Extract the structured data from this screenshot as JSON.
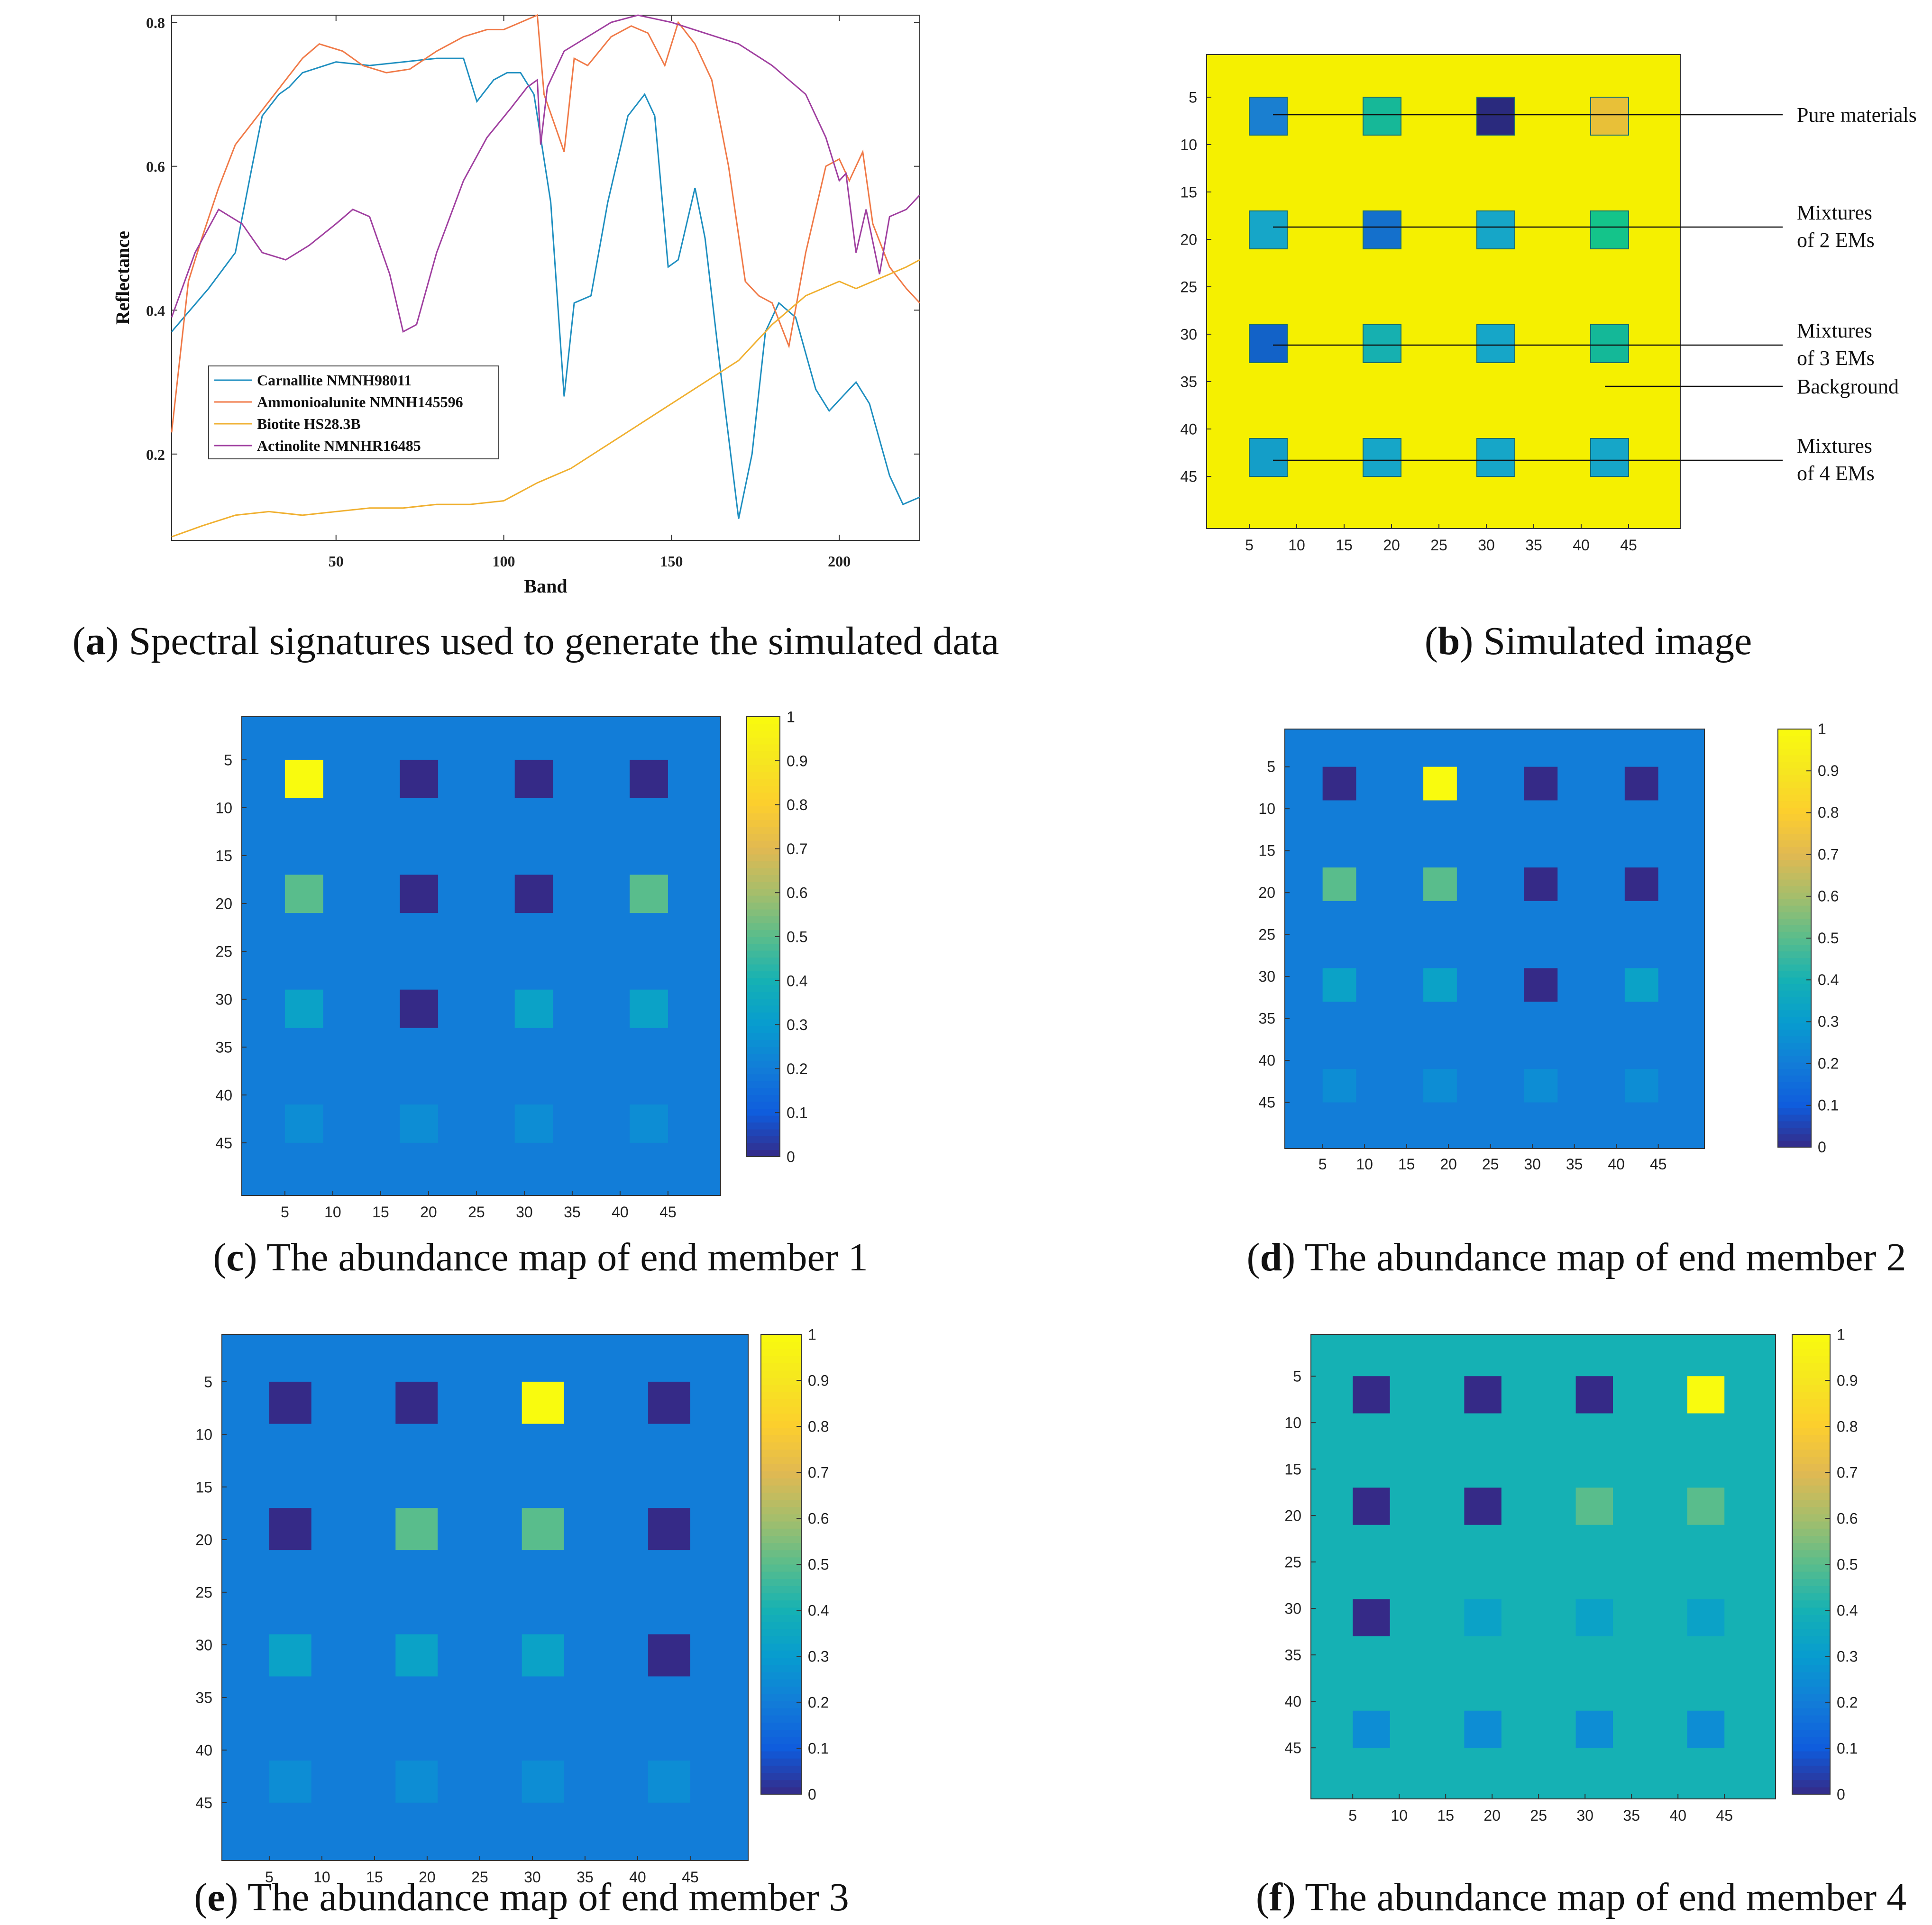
{
  "chart_data": [
    {
      "id": "a",
      "type": "line",
      "caption_letter": "a",
      "caption_text": " Spectral signatures used to generate the simulated data",
      "xlabel": "Band",
      "ylabel": "Reflectance",
      "xlim": [
        1,
        224
      ],
      "ylim": [
        0.08,
        0.81
      ],
      "xticks": [
        50,
        100,
        150,
        200
      ],
      "yticks": [
        0.2,
        0.4,
        0.6,
        0.8
      ],
      "legend_position": "lower-left",
      "series": [
        {
          "name": "Carnallite NMNH98011",
          "color": "#1f8fc0",
          "points": [
            [
              1,
              0.37
            ],
            [
              12,
              0.43
            ],
            [
              20,
              0.48
            ],
            [
              25,
              0.6
            ],
            [
              28,
              0.67
            ],
            [
              33,
              0.7
            ],
            [
              36,
              0.71
            ],
            [
              40,
              0.73
            ],
            [
              50,
              0.745
            ],
            [
              60,
              0.74
            ],
            [
              70,
              0.745
            ],
            [
              80,
              0.75
            ],
            [
              88,
              0.75
            ],
            [
              92,
              0.69
            ],
            [
              97,
              0.72
            ],
            [
              101,
              0.73
            ],
            [
              105,
              0.73
            ],
            [
              109,
              0.7
            ],
            [
              114,
              0.55
            ],
            [
              118,
              0.28
            ],
            [
              121,
              0.41
            ],
            [
              126,
              0.42
            ],
            [
              131,
              0.55
            ],
            [
              137,
              0.67
            ],
            [
              142,
              0.7
            ],
            [
              145,
              0.67
            ],
            [
              149,
              0.46
            ],
            [
              152,
              0.47
            ],
            [
              157,
              0.57
            ],
            [
              160,
              0.5
            ],
            [
              165,
              0.3
            ],
            [
              170,
              0.11
            ],
            [
              174,
              0.2
            ],
            [
              178,
              0.37
            ],
            [
              182,
              0.41
            ],
            [
              187,
              0.39
            ],
            [
              193,
              0.29
            ],
            [
              197,
              0.26
            ],
            [
              201,
              0.28
            ],
            [
              205,
              0.3
            ],
            [
              209,
              0.27
            ],
            [
              215,
              0.17
            ],
            [
              219,
              0.13
            ],
            [
              224,
              0.14
            ]
          ]
        },
        {
          "name": "Ammonioalunite NMNH145596",
          "color": "#f07a48",
          "points": [
            [
              1,
              0.23
            ],
            [
              6,
              0.44
            ],
            [
              10,
              0.5
            ],
            [
              15,
              0.57
            ],
            [
              20,
              0.63
            ],
            [
              25,
              0.66
            ],
            [
              30,
              0.69
            ],
            [
              35,
              0.72
            ],
            [
              40,
              0.75
            ],
            [
              45,
              0.77
            ],
            [
              52,
              0.76
            ],
            [
              58,
              0.74
            ],
            [
              65,
              0.73
            ],
            [
              72,
              0.735
            ],
            [
              80,
              0.76
            ],
            [
              88,
              0.78
            ],
            [
              95,
              0.79
            ],
            [
              100,
              0.79
            ],
            [
              105,
              0.8
            ],
            [
              110,
              0.81
            ],
            [
              112,
              0.7
            ],
            [
              115,
              0.66
            ],
            [
              118,
              0.62
            ],
            [
              121,
              0.75
            ],
            [
              125,
              0.74
            ],
            [
              132,
              0.78
            ],
            [
              138,
              0.795
            ],
            [
              143,
              0.785
            ],
            [
              148,
              0.74
            ],
            [
              152,
              0.8
            ],
            [
              157,
              0.77
            ],
            [
              162,
              0.72
            ],
            [
              167,
              0.6
            ],
            [
              172,
              0.44
            ],
            [
              176,
              0.42
            ],
            [
              180,
              0.41
            ],
            [
              185,
              0.35
            ],
            [
              190,
              0.48
            ],
            [
              196,
              0.6
            ],
            [
              200,
              0.61
            ],
            [
              203,
              0.58
            ],
            [
              207,
              0.62
            ],
            [
              210,
              0.52
            ],
            [
              215,
              0.46
            ],
            [
              220,
              0.43
            ],
            [
              224,
              0.41
            ]
          ]
        },
        {
          "name": "Biotite HS28.3B",
          "color": "#f0b030",
          "points": [
            [
              1,
              0.085
            ],
            [
              10,
              0.1
            ],
            [
              20,
              0.115
            ],
            [
              30,
              0.12
            ],
            [
              40,
              0.115
            ],
            [
              50,
              0.12
            ],
            [
              60,
              0.125
            ],
            [
              70,
              0.125
            ],
            [
              80,
              0.13
            ],
            [
              90,
              0.13
            ],
            [
              100,
              0.135
            ],
            [
              110,
              0.16
            ],
            [
              120,
              0.18
            ],
            [
              130,
              0.21
            ],
            [
              140,
              0.24
            ],
            [
              150,
              0.27
            ],
            [
              160,
              0.3
            ],
            [
              170,
              0.33
            ],
            [
              180,
              0.38
            ],
            [
              190,
              0.42
            ],
            [
              200,
              0.44
            ],
            [
              205,
              0.43
            ],
            [
              210,
              0.44
            ],
            [
              215,
              0.45
            ],
            [
              220,
              0.46
            ],
            [
              224,
              0.47
            ]
          ]
        },
        {
          "name": "Actinolite NMNHR16485",
          "color": "#a040a0",
          "points": [
            [
              1,
              0.39
            ],
            [
              8,
              0.48
            ],
            [
              15,
              0.54
            ],
            [
              22,
              0.52
            ],
            [
              28,
              0.48
            ],
            [
              35,
              0.47
            ],
            [
              42,
              0.49
            ],
            [
              50,
              0.52
            ],
            [
              55,
              0.54
            ],
            [
              60,
              0.53
            ],
            [
              66,
              0.45
            ],
            [
              70,
              0.37
            ],
            [
              74,
              0.38
            ],
            [
              80,
              0.48
            ],
            [
              88,
              0.58
            ],
            [
              95,
              0.64
            ],
            [
              102,
              0.68
            ],
            [
              107,
              0.71
            ],
            [
              110,
              0.72
            ],
            [
              111,
              0.63
            ],
            [
              113,
              0.71
            ],
            [
              118,
              0.76
            ],
            [
              125,
              0.78
            ],
            [
              132,
              0.8
            ],
            [
              140,
              0.81
            ],
            [
              150,
              0.8
            ],
            [
              160,
              0.785
            ],
            [
              170,
              0.77
            ],
            [
              180,
              0.74
            ],
            [
              190,
              0.7
            ],
            [
              196,
              0.64
            ],
            [
              200,
              0.58
            ],
            [
              202,
              0.59
            ],
            [
              205,
              0.48
            ],
            [
              208,
              0.54
            ],
            [
              212,
              0.45
            ],
            [
              215,
              0.53
            ],
            [
              220,
              0.54
            ],
            [
              224,
              0.56
            ]
          ]
        }
      ]
    },
    {
      "id": "b",
      "type": "heatmap",
      "caption_letter": "b",
      "caption_text": " Simulated image",
      "xticks": [
        5,
        10,
        15,
        20,
        25,
        30,
        35,
        40,
        45
      ],
      "yticks": [
        5,
        10,
        15,
        20,
        25,
        30,
        35,
        40,
        45
      ],
      "extent": [
        0.5,
        50.5
      ],
      "background_color": "#f5f000",
      "square_centers": [
        7,
        19,
        31,
        43
      ],
      "square_size": 4,
      "square_colors": [
        [
          "#1a7fd0",
          "#16b898",
          "#2a2a7e",
          "#e8c038"
        ],
        [
          "#16a6c8",
          "#1470cc",
          "#16a6c8",
          "#14c48a"
        ],
        [
          "#1262c8",
          "#16b0b0",
          "#16a6c8",
          "#14b898"
        ],
        [
          "#149ec8",
          "#16a6c8",
          "#16a6c8",
          "#16a6c8"
        ]
      ],
      "annotations": [
        {
          "lines": [
            "Pure materials"
          ],
          "row": 0
        },
        {
          "lines": [
            "Mixtures",
            "of 2 EMs"
          ],
          "row": 1
        },
        {
          "lines": [
            "Mixtures",
            "of 3 EMs"
          ],
          "row": 2
        },
        {
          "lines": [
            "Background"
          ],
          "row": -1
        },
        {
          "lines": [
            "Mixtures",
            "of 4 EMs"
          ],
          "row": 3
        }
      ]
    },
    {
      "id": "c",
      "type": "heatmap",
      "caption_letter": "c",
      "caption_text": " The abundance map of end member 1",
      "xticks": [
        5,
        10,
        15,
        20,
        25,
        30,
        35,
        40,
        45
      ],
      "yticks": [
        5,
        10,
        15,
        20,
        25,
        30,
        35,
        40,
        45
      ],
      "extent": [
        0.5,
        50.5
      ],
      "colorbar_ticks": [
        0,
        0.1,
        0.2,
        0.3,
        0.4,
        0.5,
        0.6,
        0.7,
        0.8,
        0.9,
        1
      ],
      "background": 0.2,
      "square_centers": [
        7,
        19,
        31,
        43
      ],
      "square_size": 4,
      "values": [
        [
          1,
          0,
          0,
          0
        ],
        [
          0.5,
          0,
          0,
          0.5
        ],
        [
          0.33,
          0,
          0.33,
          0.33
        ],
        [
          0.25,
          0.25,
          0.25,
          0.25
        ]
      ]
    },
    {
      "id": "d",
      "type": "heatmap",
      "caption_letter": "d",
      "caption_text": " The abundance map of end member 2",
      "xticks": [
        5,
        10,
        15,
        20,
        25,
        30,
        35,
        40,
        45
      ],
      "yticks": [
        5,
        10,
        15,
        20,
        25,
        30,
        35,
        40,
        45
      ],
      "extent": [
        0.5,
        50.5
      ],
      "colorbar_ticks": [
        0,
        0.1,
        0.2,
        0.3,
        0.4,
        0.5,
        0.6,
        0.7,
        0.8,
        0.9,
        1
      ],
      "background": 0.2,
      "square_centers": [
        7,
        19,
        31,
        43
      ],
      "square_size": 4,
      "values": [
        [
          0,
          1,
          0,
          0
        ],
        [
          0.5,
          0.5,
          0,
          0
        ],
        [
          0.33,
          0.33,
          0,
          0.33
        ],
        [
          0.25,
          0.25,
          0.25,
          0.25
        ]
      ]
    },
    {
      "id": "e",
      "type": "heatmap",
      "caption_letter": "e",
      "caption_text": " The abundance map of end member 3",
      "xticks": [
        5,
        10,
        15,
        20,
        25,
        30,
        35,
        40,
        45
      ],
      "yticks": [
        5,
        10,
        15,
        20,
        25,
        30,
        35,
        40,
        45
      ],
      "extent": [
        0.5,
        50.5
      ],
      "colorbar_ticks": [
        0,
        0.1,
        0.2,
        0.3,
        0.4,
        0.5,
        0.6,
        0.7,
        0.8,
        0.9,
        1
      ],
      "background": 0.2,
      "square_centers": [
        7,
        19,
        31,
        43
      ],
      "square_size": 4,
      "values": [
        [
          0,
          0,
          1,
          0
        ],
        [
          0,
          0.5,
          0.5,
          0
        ],
        [
          0.33,
          0.33,
          0.33,
          0
        ],
        [
          0.25,
          0.25,
          0.25,
          0.25
        ]
      ]
    },
    {
      "id": "f",
      "type": "heatmap",
      "caption_letter": "f",
      "caption_text": " The abundance map of end member 4",
      "xticks": [
        5,
        10,
        15,
        20,
        25,
        30,
        35,
        40,
        45
      ],
      "yticks": [
        5,
        10,
        15,
        20,
        25,
        30,
        35,
        40,
        45
      ],
      "extent": [
        0.5,
        50.5
      ],
      "colorbar_ticks": [
        0,
        0.1,
        0.2,
        0.3,
        0.4,
        0.5,
        0.6,
        0.7,
        0.8,
        0.9,
        1
      ],
      "background": 0.4,
      "square_centers": [
        7,
        19,
        31,
        43
      ],
      "square_size": 4,
      "values": [
        [
          0,
          0,
          0,
          1
        ],
        [
          0,
          0,
          0.5,
          0.5
        ],
        [
          0,
          0.33,
          0.33,
          0.33
        ],
        [
          0.25,
          0.25,
          0.25,
          0.25
        ]
      ]
    }
  ]
}
